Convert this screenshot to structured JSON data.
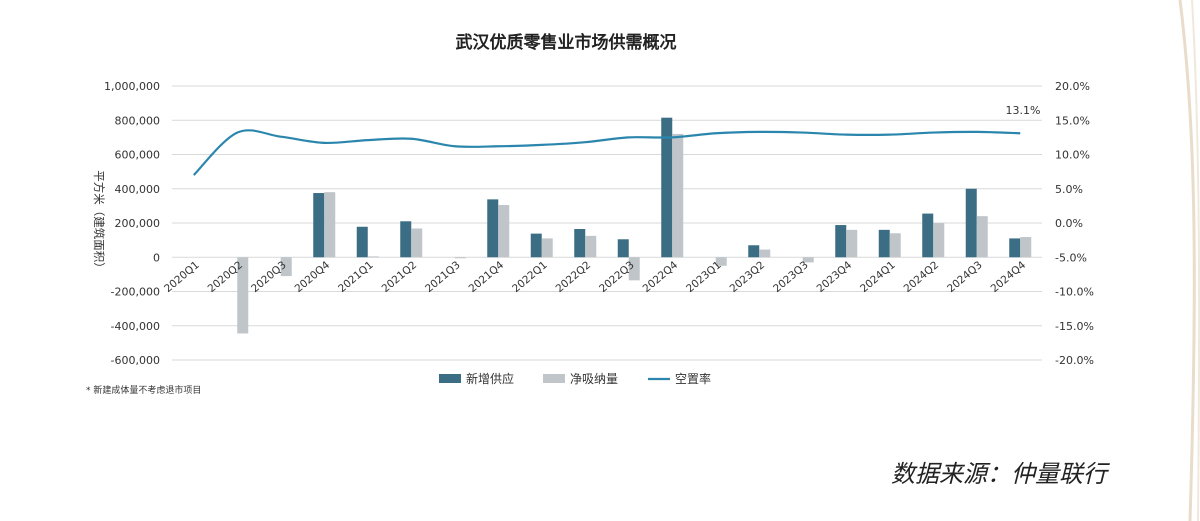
{
  "chart_data": {
    "type": "bar+line",
    "title": "武汉优质零售业市场供需概况",
    "ylabel": "平方米（建筑面积）",
    "categories": [
      "2020Q1",
      "2020Q2",
      "2020Q3",
      "2020Q4",
      "2021Q1",
      "2021Q2",
      "2021Q3",
      "2021Q4",
      "2022Q1",
      "2022Q2",
      "2022Q3",
      "2022Q4",
      "2023Q1",
      "2023Q2",
      "2023Q3",
      "2023Q4",
      "2024Q1",
      "2024Q2",
      "2024Q3",
      "2024Q4"
    ],
    "ylim": [
      -600000,
      1000000
    ],
    "y2lim": [
      -20,
      20
    ],
    "yticks": [
      "1,000,000",
      "800,000",
      "600,000",
      "400,000",
      "200,000",
      "0",
      "-200,000",
      "-400,000",
      "-600,000"
    ],
    "y2ticks": [
      "20.0%",
      "15.0%",
      "10.0%",
      "5.0%",
      "0.0%",
      "-5.0%",
      "-10.0%",
      "-15.0%",
      "-20.0%"
    ],
    "series": [
      {
        "name": "新增供应",
        "type": "bar",
        "color": "#3b6e84",
        "values": [
          0,
          0,
          0,
          375000,
          178000,
          210000,
          0,
          338000,
          138000,
          165000,
          105000,
          815000,
          0,
          70000,
          0,
          188000,
          160000,
          255000,
          400000,
          110000
        ]
      },
      {
        "name": "净吸纳量",
        "type": "bar",
        "color": "#bfc5c9",
        "values": [
          0,
          -445000,
          -110000,
          380000,
          5000,
          168000,
          -5000,
          305000,
          110000,
          125000,
          -135000,
          720000,
          -50000,
          45000,
          -30000,
          160000,
          140000,
          200000,
          240000,
          118000
        ]
      },
      {
        "name": "空置率",
        "type": "line",
        "color": "#2b86ad",
        "axis": "right",
        "values": [
          7.0,
          13.2,
          12.6,
          11.7,
          12.1,
          12.3,
          11.2,
          11.2,
          11.4,
          11.8,
          12.5,
          12.5,
          13.1,
          13.3,
          13.2,
          12.9,
          12.9,
          13.2,
          13.3,
          13.1
        ]
      }
    ],
    "annotation": "13.1%",
    "legend_position": "bottom"
  },
  "footnote": "* 新建成体量不考虑退市项目",
  "source": "数据来源：仲量联行"
}
